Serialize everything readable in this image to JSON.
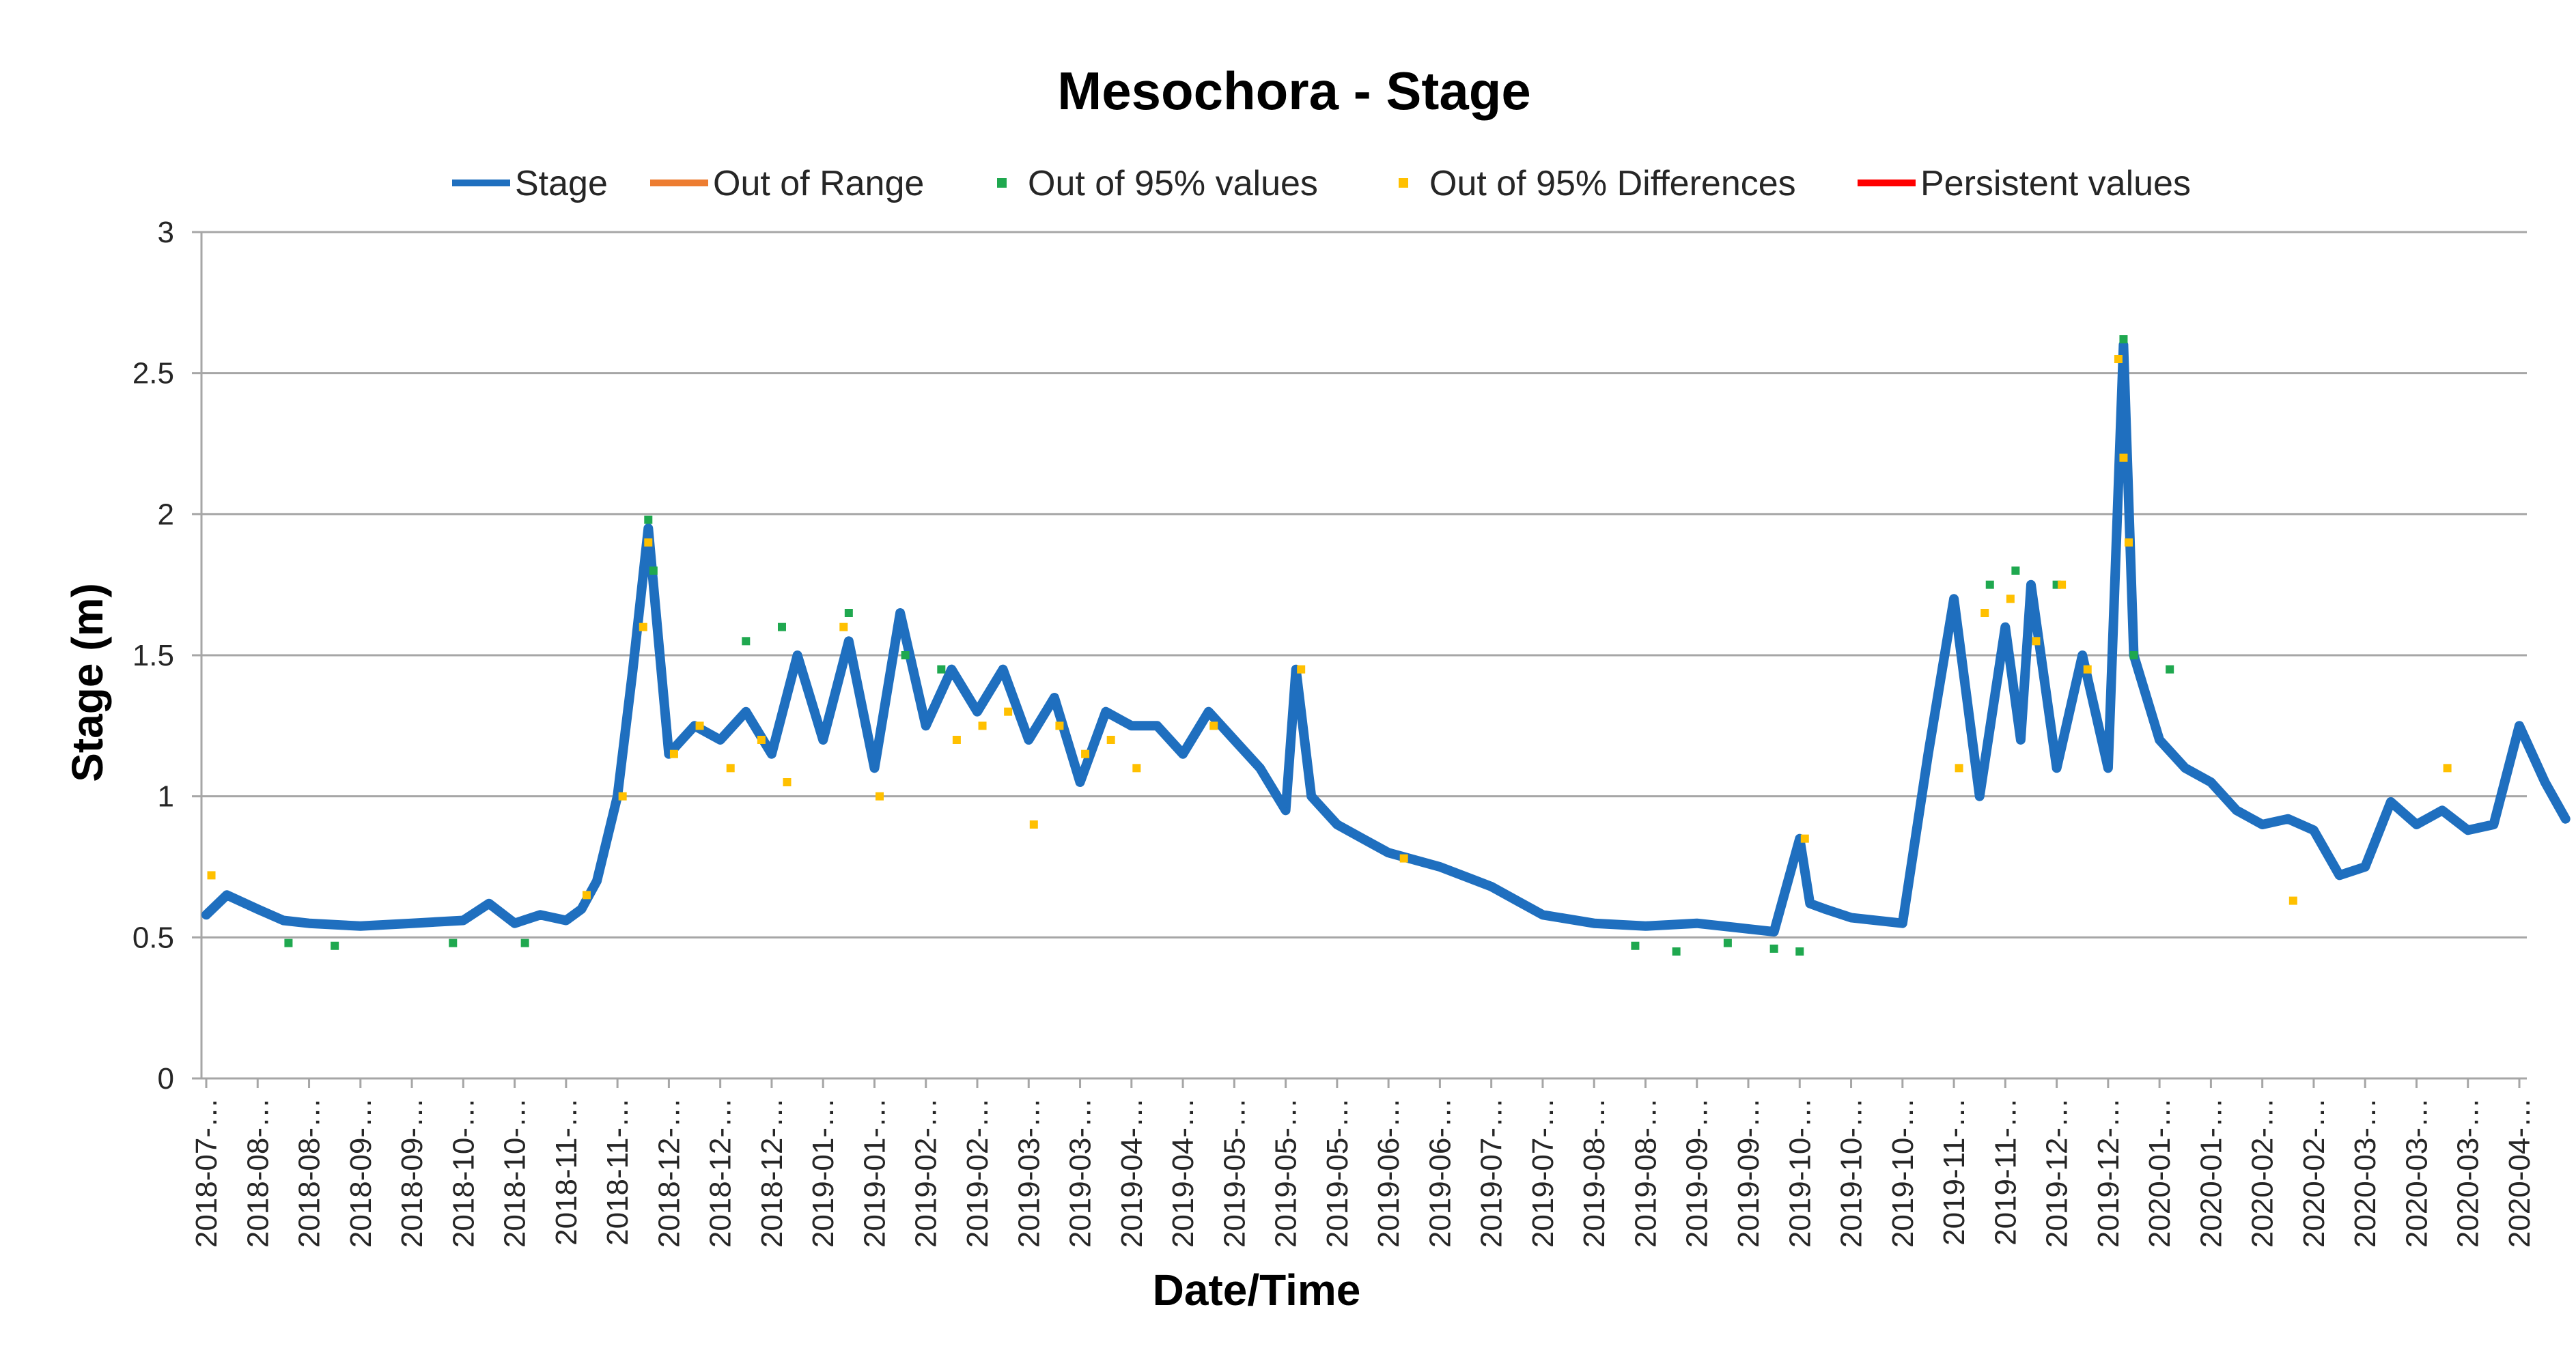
{
  "chart_data": {
    "type": "line",
    "title": "Mesochora - Stage",
    "xlabel": "Date/Time",
    "ylabel": "Stage (m)",
    "ylim": [
      0,
      3
    ],
    "yticks": [
      0,
      0.5,
      1,
      1.5,
      2,
      2.5,
      3
    ],
    "grid": true,
    "legend_position": "top",
    "x_tick_labels": [
      "2018-07-…",
      "2018-08-…",
      "2018-08-…",
      "2018-09-…",
      "2018-09-…",
      "2018-10-…",
      "2018-10-…",
      "2018-11-…",
      "2018-11-…",
      "2018-12-…",
      "2018-12-…",
      "2018-12-…",
      "2019-01-…",
      "2019-01-…",
      "2019-02-…",
      "2019-02-…",
      "2019-03-…",
      "2019-03-…",
      "2019-04-…",
      "2019-04-…",
      "2019-05-…",
      "2019-05-…",
      "2019-05-…",
      "2019-06-…",
      "2019-06-…",
      "2019-07-…",
      "2019-07-…",
      "2019-08-…",
      "2019-08-…",
      "2019-09-…",
      "2019-09-…",
      "2019-10-…",
      "2019-10-…",
      "2019-10-…",
      "2019-11-…",
      "2019-11-…",
      "2019-12-…",
      "2019-12-…",
      "2020-01-…",
      "2020-01-…",
      "2020-02-…",
      "2020-02-…",
      "2020-03-…",
      "2020-03-…",
      "2020-03-…",
      "2020-04-…"
    ],
    "legend": [
      {
        "name": "Stage",
        "color": "#1F6FBF",
        "style": "line"
      },
      {
        "name": "Out of Range",
        "color": "#ED7D31",
        "style": "line"
      },
      {
        "name": "Out of 95% values",
        "color": "#1FA84F",
        "style": "marker"
      },
      {
        "name": "Out of 95% Differences",
        "color": "#FFC000",
        "style": "marker"
      },
      {
        "name": "Persistent values",
        "color": "#FF0000",
        "style": "line"
      }
    ],
    "series": [
      {
        "name": "Stage",
        "color": "#1F6FBF",
        "x_index": [
          0,
          0.4,
          1,
          1.5,
          2,
          3,
          4,
          5,
          5.5,
          6,
          6.5,
          7,
          7.3,
          7.6,
          8,
          8.3,
          8.6,
          9,
          9.5,
          10,
          10.5,
          11,
          11.5,
          12,
          12.5,
          13,
          13.5,
          14,
          14.5,
          15,
          15.5,
          16,
          16.5,
          17,
          17.5,
          18,
          18.5,
          19,
          19.5,
          20,
          20.5,
          21,
          21.2,
          21.5,
          22,
          22.5,
          23,
          24,
          25,
          25.5,
          26,
          27,
          28,
          29,
          30,
          30.5,
          31,
          31.2,
          31.5,
          32,
          33,
          33.5,
          34,
          34.5,
          35,
          35.3,
          35.5,
          36,
          36.5,
          37,
          37.3,
          37.5,
          38,
          38.5,
          39,
          39.5,
          40,
          40.5,
          41,
          41.5,
          42,
          42.5,
          43,
          43.5,
          44,
          44.5,
          45,
          45.5,
          45.9
        ],
        "values": [
          0.58,
          0.65,
          0.6,
          0.56,
          0.55,
          0.54,
          0.55,
          0.56,
          0.62,
          0.55,
          0.58,
          0.56,
          0.6,
          0.7,
          1.0,
          1.45,
          1.95,
          1.15,
          1.25,
          1.2,
          1.3,
          1.15,
          1.5,
          1.2,
          1.55,
          1.1,
          1.65,
          1.25,
          1.45,
          1.3,
          1.45,
          1.2,
          1.35,
          1.05,
          1.3,
          1.25,
          1.25,
          1.15,
          1.3,
          1.2,
          1.1,
          0.95,
          1.45,
          1.0,
          0.9,
          0.85,
          0.8,
          0.75,
          0.68,
          0.63,
          0.58,
          0.55,
          0.54,
          0.55,
          0.53,
          0.52,
          0.85,
          0.62,
          0.6,
          0.57,
          0.55,
          1.15,
          1.7,
          1.0,
          1.6,
          1.2,
          1.75,
          1.1,
          1.5,
          1.1,
          2.6,
          1.5,
          1.2,
          1.1,
          1.05,
          0.95,
          0.9,
          0.92,
          0.88,
          0.72,
          0.75,
          0.98,
          0.9,
          0.95,
          0.88,
          0.9,
          1.25,
          1.05,
          0.92
        ]
      },
      {
        "name": "Out of Range",
        "color": "#ED7D31",
        "x_index": [],
        "values": []
      },
      {
        "name": "Out of 95% values",
        "color": "#1FA84F",
        "x_index": [
          1.6,
          2.5,
          4.8,
          6.2,
          8.6,
          8.7,
          10.5,
          11.2,
          12.5,
          13.6,
          14.3,
          27.8,
          28.6,
          29.6,
          30.5,
          31.0,
          34.7,
          35.2,
          36.0,
          37.3,
          37.5,
          38.2
        ],
        "values": [
          0.48,
          0.47,
          0.48,
          0.48,
          1.98,
          1.8,
          1.55,
          1.6,
          1.65,
          1.5,
          1.45,
          0.47,
          0.45,
          0.48,
          0.46,
          0.45,
          1.75,
          1.8,
          1.75,
          2.62,
          1.5,
          1.45
        ]
      },
      {
        "name": "Out of 95% Differences",
        "color": "#FFC000",
        "x_index": [
          0.1,
          7.4,
          8.1,
          8.5,
          8.6,
          9.1,
          9.6,
          10.2,
          10.8,
          11.3,
          12.4,
          13.1,
          14.6,
          15.1,
          15.6,
          16.1,
          16.6,
          17.1,
          17.6,
          18.1,
          19.6,
          21.3,
          23.3,
          31.1,
          34.1,
          34.6,
          35.1,
          35.6,
          36.1,
          36.6,
          37.2,
          37.3,
          37.4,
          40.6,
          43.6
        ],
        "values": [
          0.72,
          0.65,
          1.0,
          1.6,
          1.9,
          1.15,
          1.25,
          1.1,
          1.2,
          1.05,
          1.6,
          1.0,
          1.2,
          1.25,
          1.3,
          0.9,
          1.25,
          1.15,
          1.2,
          1.1,
          1.25,
          1.45,
          0.78,
          0.85,
          1.1,
          1.65,
          1.7,
          1.55,
          1.75,
          1.45,
          2.55,
          2.2,
          1.9,
          0.63,
          1.1
        ]
      },
      {
        "name": "Persistent values",
        "color": "#FF0000",
        "x_index": [],
        "values": []
      }
    ]
  }
}
